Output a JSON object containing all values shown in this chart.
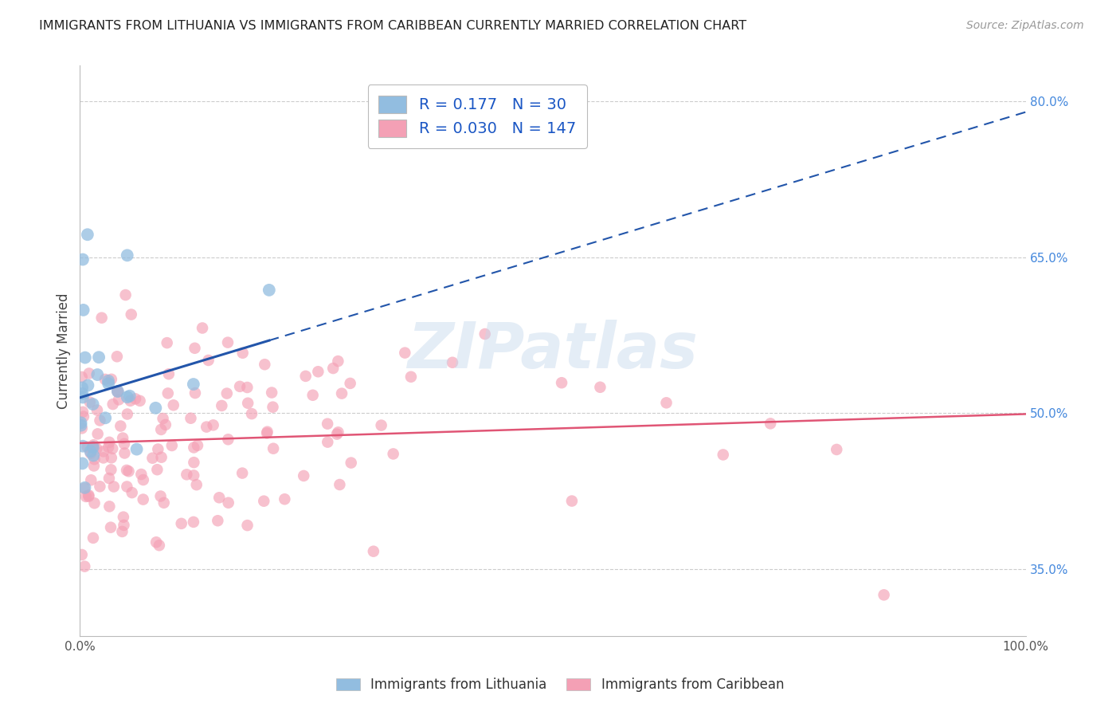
{
  "title": "IMMIGRANTS FROM LITHUANIA VS IMMIGRANTS FROM CARIBBEAN CURRENTLY MARRIED CORRELATION CHART",
  "source": "Source: ZipAtlas.com",
  "ylabel": "Currently Married",
  "xlim": [
    0.0,
    1.0
  ],
  "ylim": [
    0.285,
    0.835
  ],
  "ytick_vals": [
    0.35,
    0.5,
    0.65,
    0.8
  ],
  "series1_color": "#92BDE0",
  "series1_edge": "#92BDE0",
  "series1_line_color": "#2255AA",
  "series2_color": "#F4A0B5",
  "series2_edge": "#F4A0B5",
  "series2_line_color": "#E05575",
  "R1": 0.177,
  "N1": 30,
  "R2": 0.03,
  "N2": 147,
  "legend_color": "#1A56C4",
  "legend_label_color": "#333333",
  "watermark": "ZIPatlas",
  "series1_label": "Immigrants from Lithuania",
  "series2_label": "Immigrants from Caribbean",
  "grid_color": "#CCCCCC",
  "spine_color": "#BBBBBB",
  "right_tick_color": "#4488DD",
  "lith_line_x0": 0.0,
  "lith_line_y0": 0.515,
  "lith_line_x1": 0.2,
  "lith_line_y1": 0.57,
  "carib_line_y": 0.462,
  "carib_line_slope": 0.003
}
